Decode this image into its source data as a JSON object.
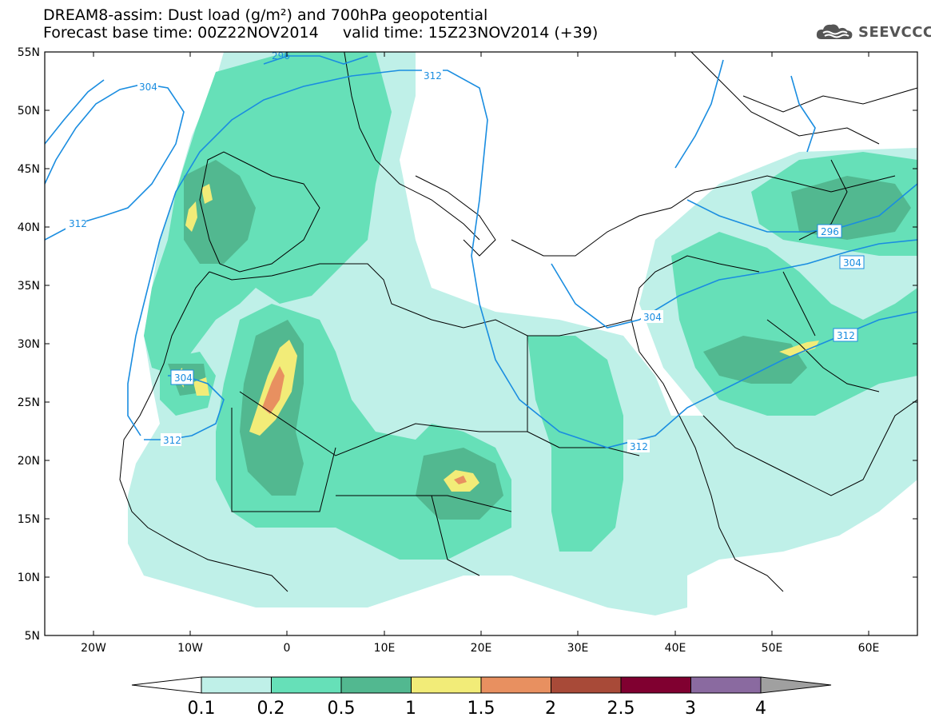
{
  "header": {
    "title_line1": "DREAM8-assim: Dust load (g/m²) and 700hPa geopotential",
    "title_line2": "Forecast base time: 00Z22NOV2014     valid time: 15Z23NOV2014 (+39)"
  },
  "logo": {
    "text": "SEEVCCC",
    "icon": "cloud-icon"
  },
  "map": {
    "lon_range": [
      -25,
      65
    ],
    "lat_range": [
      5,
      55
    ],
    "lat_ticks": [
      "5N",
      "10N",
      "15N",
      "20N",
      "25N",
      "30N",
      "35N",
      "40N",
      "45N",
      "50N",
      "55N"
    ],
    "lon_ticks": [
      "20W",
      "10W",
      "0",
      "10E",
      "20E",
      "30E",
      "40E",
      "50E",
      "60E"
    ],
    "contour_color": "#1a8de0",
    "contour_labels": [
      "296",
      "304",
      "312",
      "312",
      "304",
      "312",
      "312",
      "296",
      "304",
      "304",
      "312",
      "312",
      "296"
    ]
  },
  "colorbar": {
    "labels": [
      "0.1",
      "0.2",
      "0.5",
      "1",
      "1.5",
      "2",
      "2.5",
      "3",
      "4"
    ],
    "colors": [
      "#bff0e8",
      "#66e0b8",
      "#52b890",
      "#f2ec78",
      "#e89060",
      "#a84a38",
      "#800030",
      "#8a6aa0"
    ],
    "extend_low_color": "#ffffff",
    "extend_high_color": "#a0a0a0"
  }
}
